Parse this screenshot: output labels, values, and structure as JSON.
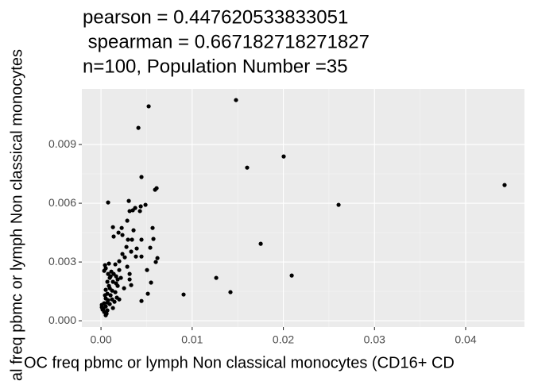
{
  "chart_data": {
    "type": "scatter",
    "title": [
      "pearson = 0.447620533833051",
      " spearman = 0.667182718271827",
      "n=100, Population Number =35"
    ],
    "x_label": "OC freq pbmc or lymph Non classical monocytes (CD16+ CD",
    "y_label": "al freq pbmc or lymph Non classical monocytes",
    "color": "#000000",
    "grid": true,
    "xlim": [
      -0.0021,
      0.04645
    ],
    "ylim": [
      -0.00032,
      0.01184
    ],
    "xticks": [
      {
        "value": 0,
        "label": "0.00"
      },
      0.01,
      0.02,
      0.03,
      0.04
    ],
    "yticks": [
      {
        "value": 0,
        "label": "0.000"
      },
      0.003,
      0.006,
      0.009
    ],
    "x": [
      0.01481,
      0.00523,
      0.0041,
      0.02004,
      0.01603,
      0.04427,
      0.02606,
      0.01752,
      0.02092,
      0.01264,
      0.0142,
      0.00906,
      0.00444,
      0.00514,
      0.00549,
      0.00444,
      0.0061,
      0.00593,
      0.00078,
      0.00305,
      0.00488,
      0.00436,
      0.00375,
      0.00349,
      0.00314,
      0.00427,
      0.00288,
      0.00566,
      0.00131,
      0.00227,
      0.00139,
      0.00192,
      0.00235,
      0.00296,
      0.0034,
      0.00444,
      0.00575,
      0.00279,
      0.00392,
      0.0054,
      0.00331,
      0.00383,
      0.00444,
      0.00619,
      0.00601,
      0.00261,
      0.002,
      0.00157,
      0.00044,
      0.00052,
      0.00113,
      0.00078,
      0.00139,
      0.00166,
      0.00314,
      0.00314,
      0.00096,
      0.00183,
      0.0007,
      0.00131,
      0.00331,
      0.00183,
      0.00253,
      0.00096,
      0.00052,
      0.00122,
      0.00157,
      0.0007,
      0.00105,
      0.00174,
      0.00052,
      0.00122,
      0.00078,
      0.00148,
      0.00035,
      0.00096,
      0.00052,
      9e-05,
      0.00017,
      0.0007,
      0.00035,
      0.00061,
      0.00052,
      0.00026,
      9e-05,
      0.00044,
      0.002,
      0.00218,
      0.00288,
      0.00235,
      0.00357,
      0.00505,
      0.00087,
      0.00166,
      0.00131,
      0.002,
      0.0007,
      0.00105,
      0.00035,
      0.00087
    ],
    "values": [
      0.01127,
      0.01095,
      0.00985,
      0.00839,
      0.00782,
      0.00693,
      0.00592,
      0.00393,
      0.00231,
      0.00219,
      0.00146,
      0.00134,
      0.00101,
      0.00138,
      0.00195,
      0.00734,
      0.00677,
      0.00669,
      0.00604,
      0.00612,
      0.00592,
      0.00584,
      0.00576,
      0.00564,
      0.0056,
      0.0056,
      0.00511,
      0.00474,
      0.00478,
      0.00474,
      0.0043,
      0.0045,
      0.00438,
      0.00414,
      0.00414,
      0.00414,
      0.00418,
      0.00377,
      0.00369,
      0.00373,
      0.00353,
      0.00328,
      0.00328,
      0.0032,
      0.003,
      0.00324,
      0.00304,
      0.00288,
      0.00284,
      0.00268,
      0.00251,
      0.00239,
      0.00239,
      0.00227,
      0.00239,
      0.00211,
      0.00219,
      0.00211,
      0.00199,
      0.00199,
      0.00182,
      0.00178,
      0.00166,
      0.00166,
      0.00158,
      0.00154,
      0.00146,
      0.00138,
      0.0013,
      0.00118,
      0.00114,
      0.00109,
      0.00105,
      0.00097,
      0.00089,
      0.00085,
      0.00073,
      0.00069,
      0.00057,
      0.00053,
      0.00045,
      0.00036,
      0.00028,
      0.00061,
      0.00081,
      0.0013,
      0.00259,
      0.00219,
      0.00276,
      0.00341,
      0.00462,
      0.00259,
      0.00178,
      0.00191,
      0.00065,
      0.00109,
      0.00093,
      0.00227,
      0.00255,
      0.00292
    ]
  }
}
